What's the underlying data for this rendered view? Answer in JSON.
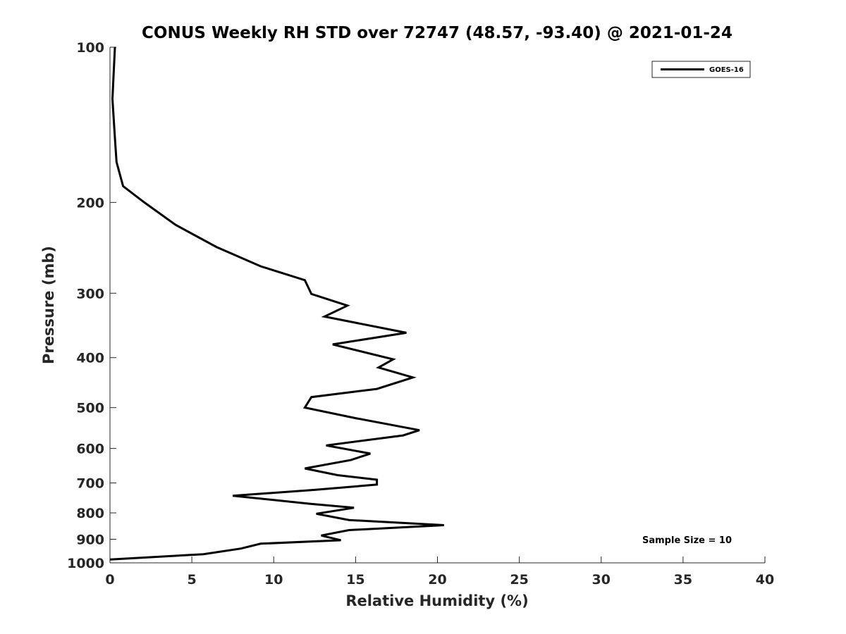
{
  "chart_data": {
    "type": "line",
    "title": "CONUS Weekly RH STD over 72747 (48.57, -93.40) @ 2021-01-24",
    "xlabel": "Relative Humidity (%)",
    "ylabel": "Pressure (mb)",
    "xlim": [
      0,
      40
    ],
    "ylim": [
      100,
      1000
    ],
    "y_scale": "log",
    "y_reversed": true,
    "grid": false,
    "legend_position": "top-right",
    "xticks": [
      "0",
      "5",
      "10",
      "15",
      "20",
      "25",
      "30",
      "35",
      "40"
    ],
    "yticks": [
      "100",
      "200",
      "300",
      "400",
      "500",
      "600",
      "700",
      "800",
      "900",
      "1000"
    ],
    "annotation": "Sample Size = 10",
    "series": [
      {
        "name": "GOES-16",
        "color": "#000000",
        "points": [
          [
            0.3,
            100
          ],
          [
            0.15,
            126
          ],
          [
            0.3,
            150
          ],
          [
            0.4,
            167
          ],
          [
            0.8,
            186
          ],
          [
            2.1,
            200
          ],
          [
            4.0,
            221
          ],
          [
            6.5,
            244
          ],
          [
            9.2,
            266
          ],
          [
            11.9,
            283
          ],
          [
            12.3,
            301
          ],
          [
            14.5,
            317
          ],
          [
            13.1,
            333
          ],
          [
            18.1,
            358
          ],
          [
            13.6,
            377
          ],
          [
            17.3,
            403
          ],
          [
            16.4,
            418
          ],
          [
            18.5,
            437
          ],
          [
            16.3,
            460
          ],
          [
            12.3,
            477
          ],
          [
            11.9,
            500
          ],
          [
            15.0,
            524
          ],
          [
            18.9,
            553
          ],
          [
            17.9,
            566
          ],
          [
            13.2,
            592
          ],
          [
            15.9,
            614
          ],
          [
            14.7,
            632
          ],
          [
            11.9,
            656
          ],
          [
            13.9,
            676
          ],
          [
            16.3,
            690
          ],
          [
            16.3,
            705
          ],
          [
            12.5,
            722
          ],
          [
            7.5,
            741
          ],
          [
            12.2,
            768
          ],
          [
            14.9,
            782
          ],
          [
            12.6,
            803
          ],
          [
            14.6,
            826
          ],
          [
            20.4,
            845
          ],
          [
            14.6,
            864
          ],
          [
            12.9,
            885
          ],
          [
            14.1,
            904
          ],
          [
            9.2,
            918
          ],
          [
            8.0,
            938
          ],
          [
            5.7,
            962
          ],
          [
            0.0,
            985
          ]
        ]
      }
    ]
  }
}
